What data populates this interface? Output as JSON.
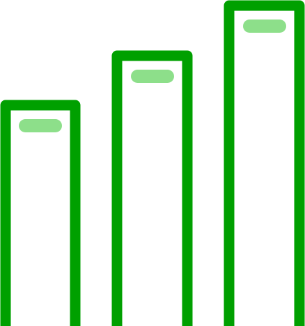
{
  "icon": {
    "name": "ascending-bars-icon",
    "colors": {
      "outline": "#00a000",
      "highlight": "#8ddf8a",
      "background": "#ffffff"
    },
    "bars": [
      {
        "name": "bar-short",
        "relative_height": 0.69
      },
      {
        "name": "bar-medium",
        "relative_height": 0.84
      },
      {
        "name": "bar-tall",
        "relative_height": 1.0
      }
    ]
  }
}
